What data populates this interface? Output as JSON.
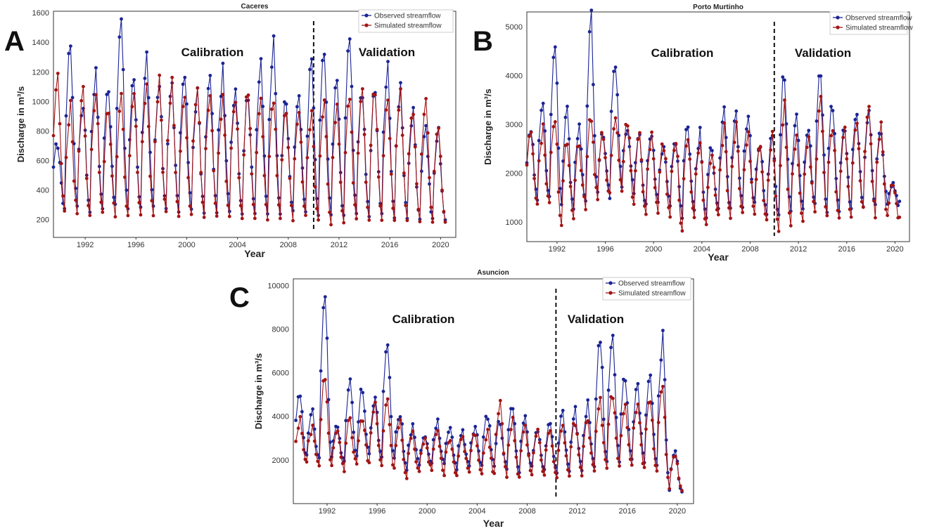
{
  "chart_data": [
    {
      "type": "line",
      "panel": "A",
      "title": "Caceres",
      "xlabel": "Year",
      "ylabel": "Discharge in m³/s",
      "xlim": [
        1989.5,
        2021.2
      ],
      "ylim": [
        80,
        1610
      ],
      "yticks": [
        200,
        400,
        600,
        800,
        1000,
        1200,
        1400,
        1600
      ],
      "xticks": [
        1992,
        1996,
        2000,
        2004,
        2008,
        2012,
        2016,
        2020
      ],
      "split_year": 2010,
      "annotations": [
        "Calibration",
        "Validation"
      ],
      "legend": [
        "Observed streamflow",
        "Simulated streamflow"
      ],
      "peaks": {
        "observed": [
          720,
          1420,
          1000,
          1180,
          1120,
          1540,
          1160,
          1300,
          1100,
          1100,
          1230,
          1060,
          1160,
          1190,
          1120,
          1060,
          1300,
          1380,
          1040,
          1060,
          1270,
          1340,
          1130,
          1450,
          1090,
          1110,
          1200,
          1080,
          920,
          840,
          790
        ],
        "simulated": [
          1130,
          960,
          1050,
          1080,
          960,
          1020,
          1040,
          1080,
          1110,
          1100,
          1000,
          1090,
          1070,
          1000,
          1030,
          1060,
          1060,
          1050,
          950,
          920,
          900,
          980,
          940,
          1000,
          1040,
          1100,
          1040,
          1090,
          960,
          1000,
          820
        ]
      },
      "troughs": {
        "observed": [
          300,
          270,
          280,
          250,
          260,
          270,
          250,
          260,
          260,
          270,
          240,
          250,
          240,
          240,
          250,
          230,
          240,
          220,
          220,
          230,
          240,
          210,
          200,
          200,
          220,
          200,
          210,
          200,
          200,
          190,
          190
        ],
        "simulated": [
          260,
          240,
          230,
          200,
          220,
          210,
          210,
          220,
          220,
          230,
          200,
          210,
          200,
          200,
          210,
          190,
          190,
          180,
          180,
          190,
          220,
          180,
          160,
          160,
          190,
          180,
          180,
          180,
          180,
          170,
          170
        ]
      }
    },
    {
      "type": "line",
      "panel": "B",
      "title": "Porto Murtinho",
      "xlabel": "Year",
      "ylabel": "Discharge in m³/s",
      "xlim": [
        1989.5,
        2021.2
      ],
      "ylim": [
        600,
        5300
      ],
      "yticks": [
        1000,
        2000,
        3000,
        4000,
        5000
      ],
      "xticks": [
        1992,
        1996,
        2000,
        2004,
        2008,
        2012,
        2016,
        2020
      ],
      "split_year": 2010,
      "annotations": [
        "Calibration",
        "Validation"
      ],
      "legend": [
        "Observed streamflow",
        "Simulated streamflow"
      ],
      "peaks": {
        "observed": [
          2800,
          3600,
          4750,
          3200,
          3050,
          5100,
          2900,
          4400,
          2950,
          2700,
          2900,
          2600,
          2700,
          3000,
          2800,
          2600,
          3250,
          3100,
          3200,
          2600,
          2800,
          4100,
          3100,
          3000,
          4200,
          3400,
          3000,
          3300,
          3300,
          2900,
          1800
        ],
        "simulated": [
          2700,
          2900,
          3200,
          2700,
          2600,
          3100,
          2800,
          3200,
          3000,
          2700,
          2800,
          2600,
          2700,
          2800,
          2700,
          2500,
          2900,
          2900,
          2900,
          2500,
          2700,
          3300,
          2800,
          2800,
          3400,
          3000,
          2800,
          3200,
          3300,
          3000,
          1800
        ]
      },
      "troughs": {
        "observed": [
          1700,
          1500,
          1400,
          1300,
          1200,
          1400,
          1600,
          1500,
          1700,
          1600,
          1300,
          1400,
          1300,
          1100,
          1200,
          1000,
          1300,
          1200,
          1300,
          1300,
          1200,
          1100,
          1200,
          1300,
          1300,
          1200,
          1100,
          1200,
          1300,
          1300,
          1350
        ],
        "simulated": [
          1800,
          1400,
          1300,
          900,
          1100,
          1300,
          1500,
          1500,
          1600,
          1400,
          1100,
          1200,
          1100,
          800,
          1000,
          900,
          1100,
          1000,
          1100,
          1100,
          1000,
          800,
          900,
          1000,
          1200,
          1100,
          1000,
          1100,
          1200,
          1100,
          1050
        ]
      }
    },
    {
      "type": "line",
      "panel": "C",
      "title": "Asuncion",
      "xlabel": "Year",
      "ylabel": "Discharge in m³/s",
      "xlim": [
        1989.3,
        2021.3
      ],
      "ylim": [
        0,
        10300
      ],
      "yticks": [
        2000,
        4000,
        6000,
        8000,
        10000
      ],
      "xticks": [
        1992,
        1996,
        2000,
        2004,
        2008,
        2012,
        2016,
        2020
      ],
      "split_year": 2010.3,
      "annotations": [
        "Calibration",
        "Validation"
      ],
      "legend": [
        "Observed streamflow",
        "Simulated streamflow"
      ],
      "peaks": {
        "observed": [
          5100,
          4100,
          9700,
          3700,
          5600,
          5300,
          4800,
          7350,
          4200,
          3500,
          3200,
          3700,
          3400,
          3300,
          3500,
          4100,
          3800,
          4600,
          3900,
          3400,
          3800,
          4100,
          4200,
          4500,
          7700,
          7900,
          5800,
          5400,
          6200,
          7500,
          2500
        ],
        "simulated": [
          3800,
          3500,
          5800,
          3500,
          3900,
          4000,
          4500,
          4600,
          3700,
          3200,
          3000,
          3300,
          3000,
          3100,
          3200,
          3300,
          4700,
          3800,
          3600,
          3300,
          3500,
          3700,
          3800,
          4000,
          4600,
          5000,
          4500,
          4500,
          4800,
          5300,
          2300
        ]
      },
      "troughs": {
        "observed": [
          2300,
          2100,
          2000,
          1900,
          1800,
          2000,
          2100,
          2000,
          1900,
          1500,
          1800,
          1900,
          1700,
          1600,
          1800,
          1700,
          1700,
          1600,
          1400,
          1600,
          1500,
          1300,
          1400,
          1500,
          1700,
          1800,
          1900,
          2000,
          1800,
          1600,
          500
        ],
        "simulated": [
          1900,
          1800,
          1700,
          1600,
          1500,
          1700,
          1800,
          1700,
          1500,
          1100,
          1400,
          1500,
          1300,
          1200,
          1400,
          1300,
          1300,
          1200,
          1100,
          1300,
          1200,
          1100,
          1200,
          1300,
          1500,
          1600,
          1700,
          1800,
          1600,
          1400,
          600
        ]
      }
    }
  ]
}
